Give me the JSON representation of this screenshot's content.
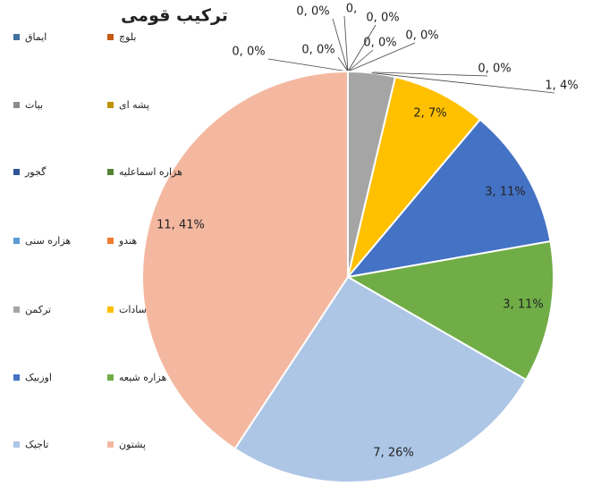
{
  "chart_data": {
    "type": "pie",
    "title": "ترکیب قومی",
    "categories": [
      "ایماق",
      "بلوچ",
      "بیات",
      "پشه ای",
      "گجور",
      "هزاره اسماعلیه",
      "هزاره سنی",
      "هندو",
      "ترکمن",
      "سادات",
      "اوزبیک",
      "هزاره شیعه",
      "تاجیک",
      "پشتون"
    ],
    "values": [
      0,
      0,
      0,
      0,
      0,
      0,
      0,
      0,
      1,
      2,
      3,
      3,
      7,
      11
    ],
    "value_labels": [
      "0, 0%",
      "0, 0%",
      "0, 0%",
      "0,",
      "0, 0%",
      "0, 0%",
      "0, 0%",
      "0, 0%",
      "1, 4%",
      "2, 7%",
      "3, 11%",
      "3, 11%",
      "7, 26%",
      "11, 41%"
    ],
    "colors": [
      "#41719c",
      "#c55a11",
      "#8c8c8c",
      "#bf9000",
      "#2f5597",
      "#548235",
      "#5b9bd5",
      "#ed7d31",
      "#a5a5a5",
      "#ffc000",
      "#4472c4",
      "#70ad47",
      "#adc6e6",
      "#f4b8a0"
    ]
  }
}
